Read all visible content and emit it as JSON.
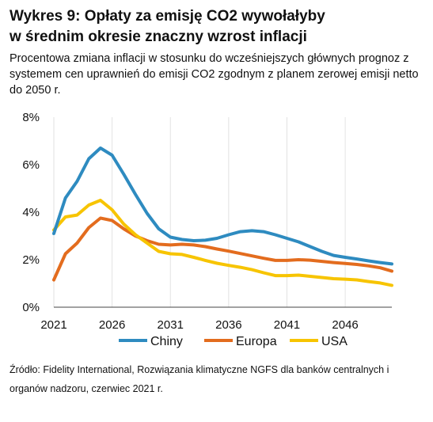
{
  "header": {
    "title_line1": "Wykres 9: Opłaty za emisję CO2 wywołałyby",
    "title_line2": "w średnim okresie znaczny wzrost inflacji",
    "subtitle": "Procentowa zmiana inflacji w stosunku do wcześniejszych głównych prognoz z systemem cen uprawnień do emisji CO2 zgodnym z planem zerowej emisji netto do 2050 r."
  },
  "footer": {
    "source": "Źródło: Fidelity International, Rozwiązania klimatyczne NGFS dla banków centralnych i organów nadzoru, czerwiec 2021 r."
  },
  "chart_data": {
    "type": "line",
    "title": "Wykres 9: Opłaty za emisję CO2 wywołałyby w średnim okresie znaczny wzrost inflacji",
    "xlabel": "",
    "ylabel": "",
    "xlim": [
      2021,
      2050
    ],
    "ylim": [
      0,
      8
    ],
    "x_ticks": [
      2021,
      2026,
      2031,
      2036,
      2041,
      2046
    ],
    "x_tick_labels": [
      "2021",
      "2026",
      "2031",
      "2036",
      "2041",
      "2046"
    ],
    "y_ticks": [
      0,
      2,
      4,
      6,
      8
    ],
    "y_tick_labels": [
      "0%",
      "2%",
      "4%",
      "6%",
      "8%"
    ],
    "grid": "vertical",
    "legend_position": "bottom",
    "x": [
      2021,
      2022,
      2023,
      2024,
      2025,
      2026,
      2027,
      2028,
      2029,
      2030,
      2031,
      2032,
      2033,
      2034,
      2035,
      2036,
      2037,
      2038,
      2039,
      2040,
      2041,
      2042,
      2043,
      2044,
      2045,
      2046,
      2047,
      2048,
      2049,
      2050
    ],
    "series": [
      {
        "name": "Chiny",
        "color": "#2E8BC0",
        "values": [
          3.1,
          4.6,
          5.3,
          6.25,
          6.7,
          6.4,
          5.6,
          4.75,
          3.95,
          3.3,
          2.95,
          2.85,
          2.8,
          2.82,
          2.9,
          3.05,
          3.18,
          3.22,
          3.18,
          3.05,
          2.9,
          2.75,
          2.55,
          2.35,
          2.18,
          2.1,
          2.03,
          1.95,
          1.88,
          1.82
        ]
      },
      {
        "name": "Europa",
        "color": "#E36C1E",
        "values": [
          1.15,
          2.25,
          2.7,
          3.35,
          3.75,
          3.65,
          3.3,
          3.0,
          2.8,
          2.65,
          2.62,
          2.65,
          2.62,
          2.55,
          2.45,
          2.36,
          2.26,
          2.16,
          2.06,
          1.97,
          1.97,
          2.0,
          1.98,
          1.93,
          1.88,
          1.84,
          1.8,
          1.74,
          1.66,
          1.52
        ]
      },
      {
        "name": "USA",
        "color": "#F7C400",
        "values": [
          3.25,
          3.8,
          3.88,
          4.3,
          4.5,
          4.1,
          3.5,
          3.05,
          2.7,
          2.35,
          2.25,
          2.22,
          2.1,
          1.97,
          1.85,
          1.76,
          1.68,
          1.58,
          1.45,
          1.33,
          1.33,
          1.35,
          1.3,
          1.25,
          1.2,
          1.18,
          1.15,
          1.08,
          1.02,
          0.92
        ]
      }
    ]
  }
}
